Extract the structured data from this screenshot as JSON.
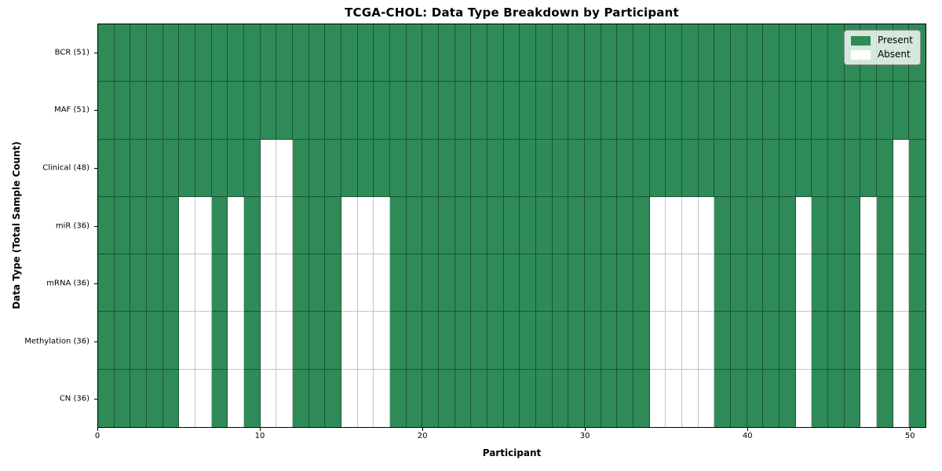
{
  "chart_data": {
    "type": "heatmap",
    "title": "TCGA-CHOL: Data Type Breakdown by Participant",
    "xlabel": "Participant",
    "ylabel": "Data Type (Total Sample Count)",
    "n_participants": 51,
    "x_range": [
      0,
      51
    ],
    "x_tick_values": [
      0,
      10,
      20,
      30,
      40,
      50
    ],
    "grid": true,
    "legend": {
      "position": "upper right",
      "entries": [
        {
          "label": "Present",
          "color": "#2e8b57"
        },
        {
          "label": "Absent",
          "color": "#ffffff"
        }
      ]
    },
    "colors": {
      "present": "#2e8b57",
      "absent": "#ffffff",
      "cell_edge_on_green": "rgba(12,38,26,0.55)",
      "cell_edge_on_white": "#c4c4c4",
      "axes_border": "#000000"
    },
    "rows": [
      {
        "label": "BCR (51)",
        "data_type": "BCR",
        "total_samples": 51,
        "absent_participants": []
      },
      {
        "label": "MAF (51)",
        "data_type": "MAF",
        "total_samples": 51,
        "absent_participants": []
      },
      {
        "label": "Clinical (48)",
        "data_type": "Clinical",
        "total_samples": 48,
        "absent_participants": [
          10,
          11,
          49
        ]
      },
      {
        "label": "miR (36)",
        "data_type": "miR",
        "total_samples": 36,
        "absent_participants": [
          5,
          6,
          8,
          10,
          11,
          15,
          16,
          17,
          34,
          35,
          36,
          37,
          43,
          47,
          49
        ]
      },
      {
        "label": "mRNA (36)",
        "data_type": "mRNA",
        "total_samples": 36,
        "absent_participants": [
          5,
          6,
          8,
          10,
          11,
          15,
          16,
          17,
          34,
          35,
          36,
          37,
          43,
          47,
          49
        ]
      },
      {
        "label": "Methylation (36)",
        "data_type": "Methylation",
        "total_samples": 36,
        "absent_participants": [
          5,
          6,
          8,
          10,
          11,
          15,
          16,
          17,
          34,
          35,
          36,
          37,
          43,
          47,
          49
        ]
      },
      {
        "label": "CN (36)",
        "data_type": "CN",
        "total_samples": 36,
        "absent_participants": [
          5,
          6,
          8,
          10,
          11,
          15,
          16,
          17,
          34,
          35,
          36,
          37,
          43,
          47,
          49
        ]
      }
    ]
  }
}
